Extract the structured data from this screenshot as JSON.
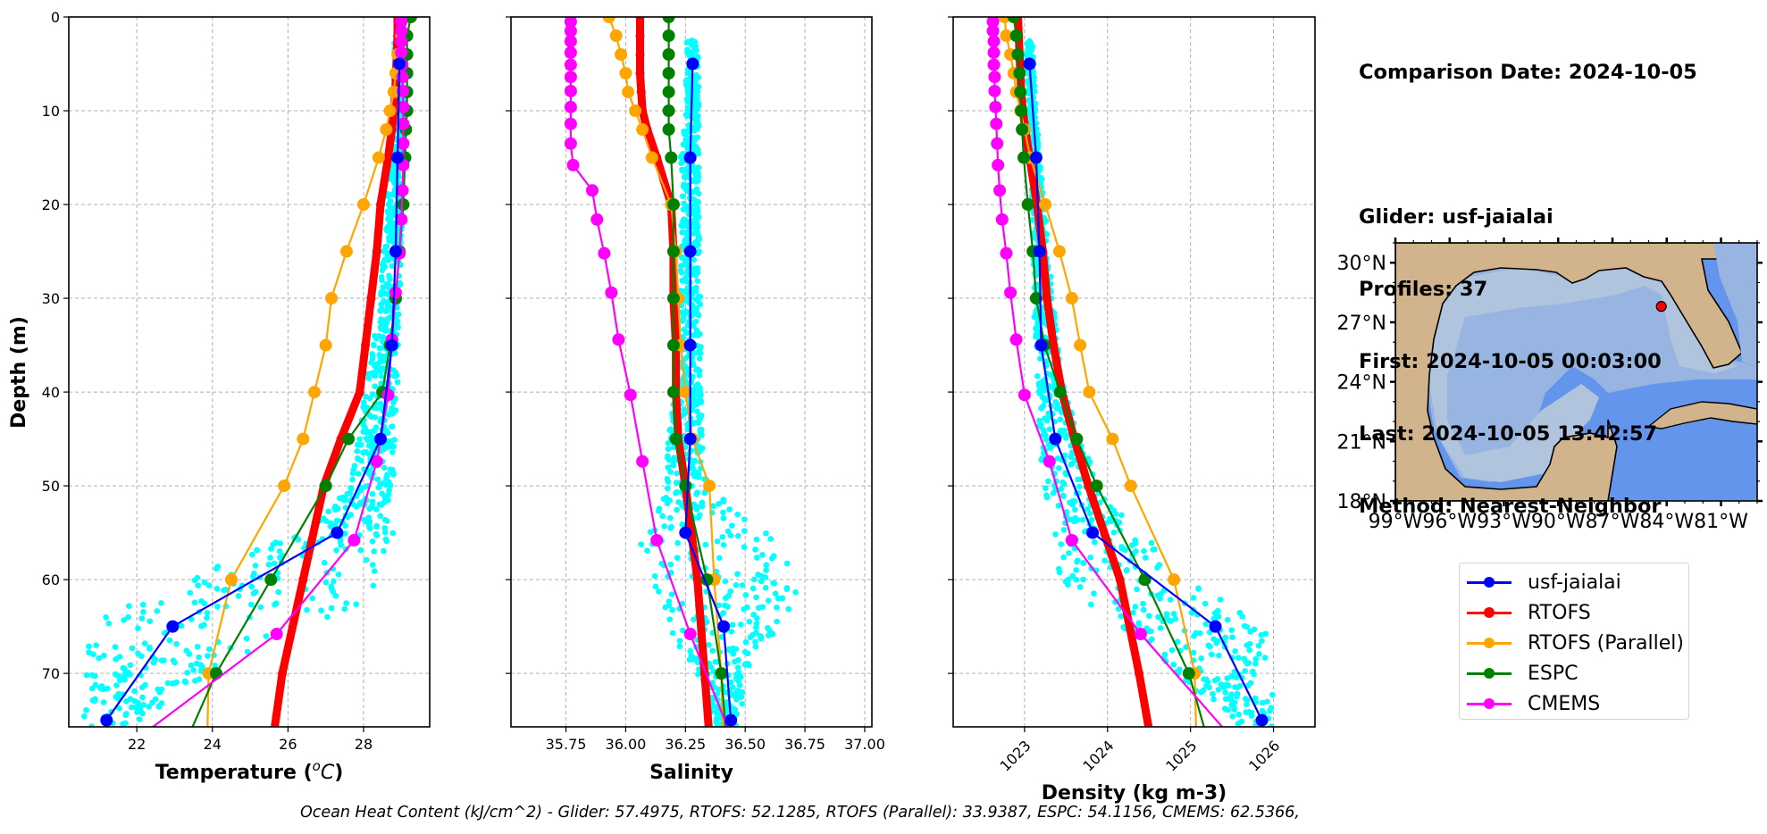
{
  "info": {
    "comparison_date": "Comparison Date: 2024-10-05",
    "glider": "Glider: usf-jaialai",
    "profiles": "Profiles: 37",
    "first": "First: 2024-10-05 00:03:00",
    "last": "Last: 2024-10-05 13:42:57",
    "method": "Method: Nearest-Neighbor"
  },
  "footer": "Ocean Heat Content (kJ/cm^2) - Glider: 57.4975,  RTOFS: 52.1285,  RTOFS (Parallel): 33.9387,  ESPC: 54.1156,  CMEMS: 62.5366,",
  "ohc": {
    "Glider": 57.4975,
    "RTOFS": 52.1285,
    "RTOFS (Parallel)": 33.9387,
    "ESPC": 54.1156,
    "CMEMS": 62.5366
  },
  "legend": [
    {
      "label": "usf-jaialai",
      "color": "#0000ff"
    },
    {
      "label": "RTOFS",
      "color": "#ff0000"
    },
    {
      "label": "RTOFS (Parallel)",
      "color": "#ffa500"
    },
    {
      "label": "ESPC",
      "color": "#008000"
    },
    {
      "label": "CMEMS",
      "color": "#ff00ff"
    }
  ],
  "colors": {
    "scatter": "#00ffff",
    "land": "#d2b48c",
    "shelf": "#b0c4de",
    "slope": "#97b5e0",
    "deep": "#6495ed",
    "glider_marker": "#ff0000"
  },
  "map": {
    "lat_ticks": [
      "30°N",
      "27°N",
      "24°N",
      "21°N",
      "18°N"
    ],
    "lat_values": [
      30,
      27,
      24,
      21,
      18
    ],
    "lon_ticks": [
      "99°W",
      "96°W",
      "93°W",
      "90°W",
      "87°W",
      "84°W",
      "81°W"
    ],
    "lon_values": [
      -99,
      -96,
      -93,
      -90,
      -87,
      -84,
      -81
    ],
    "extent": {
      "lon_min": -99,
      "lon_max": -79,
      "lat_min": 18,
      "lat_max": 31
    },
    "glider_position": {
      "lon": -84.3,
      "lat": 27.8
    }
  },
  "chart_data": [
    {
      "type": "line",
      "panel": "temperature",
      "xlabel": "Temperature (°C)",
      "ylabel": "Depth (m)",
      "xlim": [
        20.2,
        29.75
      ],
      "ylim": [
        75.7,
        0
      ],
      "xticks": [
        22,
        24,
        26,
        28
      ],
      "xtick_labels": [
        "22",
        "24",
        "26",
        "28"
      ],
      "yticks": [
        0,
        10,
        20,
        30,
        40,
        50,
        60,
        70
      ],
      "ytick_labels": [
        "0",
        "10",
        "20",
        "30",
        "40",
        "50",
        "60",
        "70"
      ],
      "grid": true,
      "scatter_band": [
        [
          2.5,
          28.8,
          29.1
        ],
        [
          10,
          28.75,
          29.1
        ],
        [
          20,
          28.6,
          29.05
        ],
        [
          30,
          28.4,
          29.0
        ],
        [
          40,
          28.0,
          28.95
        ],
        [
          45,
          27.8,
          28.9
        ],
        [
          50,
          27.6,
          28.85
        ],
        [
          55,
          26.4,
          28.8
        ],
        [
          57,
          25.0,
          28.7
        ],
        [
          60,
          23.3,
          28.4
        ],
        [
          63,
          21.2,
          27.8
        ],
        [
          67,
          20.7,
          25.2
        ],
        [
          72,
          20.6,
          23.3
        ],
        [
          75.7,
          20.6,
          21.8
        ]
      ],
      "series": [
        {
          "name": "usf-jaialai",
          "color": "#0000ff",
          "width": 2.2,
          "marker": 7,
          "depth": [
            5,
            15,
            25,
            35,
            45,
            55,
            65,
            75
          ],
          "values": [
            28.95,
            28.9,
            28.85,
            28.75,
            28.45,
            27.3,
            22.95,
            21.2
          ]
        },
        {
          "name": "RTOFS",
          "color": "#ff0000",
          "width": 9,
          "marker": 5,
          "depth": [
            0,
            2,
            4,
            6,
            8,
            10,
            12,
            15,
            20,
            25,
            30,
            35,
            40,
            45,
            50,
            60,
            70,
            80
          ],
          "values": [
            28.9,
            28.9,
            28.88,
            28.86,
            28.84,
            28.8,
            28.75,
            28.65,
            28.45,
            28.35,
            28.2,
            28.05,
            27.9,
            27.4,
            26.95,
            26.4,
            25.85,
            25.5
          ]
        },
        {
          "name": "RTOFS (Parallel)",
          "color": "#ffa500",
          "width": 2.2,
          "marker": 7,
          "depth": [
            0,
            2,
            4,
            6,
            8,
            10,
            12,
            15,
            20,
            25,
            30,
            35,
            40,
            45,
            50,
            60,
            70,
            80
          ],
          "values": [
            29.05,
            29.0,
            28.9,
            28.85,
            28.8,
            28.7,
            28.6,
            28.4,
            28.0,
            27.55,
            27.15,
            27.0,
            26.7,
            26.4,
            25.9,
            24.5,
            23.9,
            23.85
          ]
        },
        {
          "name": "ESPC",
          "color": "#008000",
          "width": 2.2,
          "marker": 7,
          "depth": [
            0,
            2,
            4,
            6,
            8,
            10,
            12,
            15,
            20,
            25,
            30,
            35,
            40,
            45,
            50,
            60,
            70,
            80
          ],
          "values": [
            29.25,
            29.15,
            29.15,
            29.15,
            29.15,
            29.15,
            29.12,
            29.1,
            29.05,
            28.95,
            28.85,
            28.7,
            28.5,
            27.6,
            27.0,
            25.55,
            24.1,
            23.0
          ]
        },
        {
          "name": "CMEMS",
          "color": "#ff00ff",
          "width": 2.2,
          "marker": 7,
          "depth": [
            0.5,
            1.5,
            2.6,
            3.8,
            5.1,
            6.4,
            7.9,
            9.6,
            11.4,
            13.5,
            15.8,
            18.5,
            21.6,
            25.2,
            29.4,
            34.4,
            40.3,
            47.4,
            55.8,
            65.8,
            77.9
          ],
          "values": [
            29.0,
            29.0,
            29.0,
            29.0,
            29.02,
            29.03,
            29.04,
            29.05,
            29.05,
            29.05,
            29.05,
            29.03,
            29.0,
            28.95,
            28.85,
            28.75,
            28.65,
            28.35,
            27.75,
            25.7,
            21.7
          ]
        }
      ]
    },
    {
      "type": "line",
      "panel": "salinity",
      "xlabel": "Salinity",
      "ylabel": "",
      "xlim": [
        35.52,
        37.03
      ],
      "ylim": [
        75.7,
        0
      ],
      "xticks": [
        35.75,
        36.0,
        36.25,
        36.5,
        36.75,
        37.0
      ],
      "xtick_labels": [
        "35.75",
        "36.00",
        "36.25",
        "36.50",
        "36.75",
        "37.00"
      ],
      "yticks": [
        0,
        10,
        20,
        30,
        40,
        50,
        60,
        70
      ],
      "grid": true,
      "scatter_band": [
        [
          2.5,
          36.25,
          36.31
        ],
        [
          10,
          36.25,
          36.31
        ],
        [
          15,
          36.22,
          36.31
        ],
        [
          20,
          36.23,
          36.31
        ],
        [
          30,
          36.22,
          36.32
        ],
        [
          40,
          36.2,
          36.32
        ],
        [
          45,
          36.17,
          36.33
        ],
        [
          50,
          36.16,
          36.35
        ],
        [
          55,
          36.05,
          36.6
        ],
        [
          60,
          36.1,
          36.72
        ],
        [
          64,
          36.15,
          36.7
        ],
        [
          67,
          36.2,
          36.56
        ],
        [
          70,
          36.3,
          36.5
        ],
        [
          75.7,
          36.38,
          36.48
        ]
      ],
      "series": [
        {
          "name": "usf-jaialai",
          "color": "#0000ff",
          "width": 2.2,
          "marker": 7,
          "depth": [
            5,
            15,
            25,
            35,
            45,
            55,
            65,
            75
          ],
          "values": [
            36.28,
            36.27,
            36.27,
            36.27,
            36.27,
            36.25,
            36.41,
            36.44
          ]
        },
        {
          "name": "RTOFS",
          "color": "#ff0000",
          "width": 9,
          "marker": 5,
          "depth": [
            0,
            2,
            4,
            6,
            8,
            10,
            12,
            15,
            20,
            25,
            30,
            35,
            40,
            45,
            50,
            60,
            70,
            80
          ],
          "values": [
            36.06,
            36.06,
            36.06,
            36.06,
            36.065,
            36.07,
            36.09,
            36.13,
            36.19,
            36.2,
            36.2,
            36.21,
            36.21,
            36.22,
            36.25,
            36.3,
            36.33,
            36.36
          ]
        },
        {
          "name": "RTOFS (Parallel)",
          "color": "#ffa500",
          "width": 2.2,
          "marker": 7,
          "depth": [
            0,
            2,
            4,
            6,
            8,
            10,
            12,
            15,
            20,
            25,
            30,
            35,
            40,
            45,
            50,
            60,
            70,
            80
          ],
          "values": [
            35.93,
            35.96,
            35.98,
            36.0,
            36.01,
            36.04,
            36.07,
            36.11,
            36.19,
            36.21,
            36.22,
            36.23,
            36.25,
            36.28,
            36.35,
            36.37,
            36.4,
            36.41
          ]
        },
        {
          "name": "ESPC",
          "color": "#008000",
          "width": 2.2,
          "marker": 7,
          "depth": [
            0,
            2,
            4,
            6,
            8,
            10,
            12,
            15,
            20,
            25,
            30,
            35,
            40,
            45,
            50,
            60,
            70,
            80
          ],
          "values": [
            36.18,
            36.18,
            36.18,
            36.18,
            36.18,
            36.18,
            36.18,
            36.19,
            36.2,
            36.2,
            36.2,
            36.2,
            36.2,
            36.21,
            36.25,
            36.34,
            36.4,
            36.43
          ]
        },
        {
          "name": "CMEMS",
          "color": "#ff00ff",
          "width": 2.2,
          "marker": 7,
          "depth": [
            0.5,
            1.5,
            2.6,
            3.8,
            5.1,
            6.4,
            7.9,
            9.6,
            11.4,
            13.5,
            15.8,
            18.5,
            21.6,
            25.2,
            29.4,
            34.4,
            40.3,
            47.4,
            55.8,
            65.8,
            77.9
          ],
          "values": [
            35.77,
            35.77,
            35.77,
            35.77,
            35.77,
            35.77,
            35.77,
            35.77,
            35.77,
            35.77,
            35.78,
            35.86,
            35.88,
            35.91,
            35.94,
            35.97,
            36.02,
            36.07,
            36.13,
            36.27,
            36.46
          ]
        }
      ]
    },
    {
      "type": "line",
      "panel": "density",
      "xlabel": "Density (kg m-3)",
      "ylabel": "",
      "xlim": [
        1022.14,
        1026.5
      ],
      "ylim": [
        75.7,
        0
      ],
      "xticks": [
        1023,
        1024,
        1025,
        1026
      ],
      "xtick_labels": [
        "1023",
        "1024",
        "1025",
        "1026"
      ],
      "yticks": [
        0,
        10,
        20,
        30,
        40,
        50,
        60,
        70
      ],
      "grid": true,
      "scatter_band": [
        [
          2.5,
          1023.02,
          1023.1
        ],
        [
          10,
          1023.04,
          1023.14
        ],
        [
          20,
          1023.08,
          1023.25
        ],
        [
          30,
          1023.1,
          1023.35
        ],
        [
          40,
          1023.12,
          1023.5
        ],
        [
          45,
          1023.15,
          1023.7
        ],
        [
          50,
          1023.2,
          1023.95
        ],
        [
          55,
          1023.3,
          1024.4
        ],
        [
          60,
          1023.4,
          1025.0
        ],
        [
          63,
          1023.8,
          1025.6
        ],
        [
          66,
          1024.3,
          1025.95
        ],
        [
          70,
          1024.8,
          1026.0
        ],
        [
          75.7,
          1025.6,
          1026.0
        ]
      ],
      "series": [
        {
          "name": "usf-jaialai",
          "color": "#0000ff",
          "width": 2.2,
          "marker": 7,
          "depth": [
            5,
            15,
            25,
            35,
            45,
            55,
            65,
            75
          ],
          "values": [
            1023.06,
            1023.14,
            1023.18,
            1023.2,
            1023.37,
            1023.82,
            1025.3,
            1025.86
          ]
        },
        {
          "name": "RTOFS",
          "color": "#ff0000",
          "width": 9,
          "marker": 5,
          "depth": [
            0,
            2,
            4,
            6,
            8,
            10,
            12,
            15,
            20,
            25,
            30,
            35,
            40,
            45,
            50,
            60,
            70,
            80
          ],
          "values": [
            1022.92,
            1022.93,
            1022.94,
            1022.95,
            1022.96,
            1022.98,
            1023.01,
            1023.06,
            1023.15,
            1023.22,
            1023.27,
            1023.35,
            1023.45,
            1023.6,
            1023.77,
            1024.15,
            1024.38,
            1024.58
          ]
        },
        {
          "name": "RTOFS (Parallel)",
          "color": "#ffa500",
          "width": 2.2,
          "marker": 7,
          "depth": [
            0,
            2,
            4,
            6,
            8,
            10,
            12,
            15,
            20,
            25,
            30,
            35,
            40,
            45,
            50,
            60,
            70,
            80
          ],
          "values": [
            1022.76,
            1022.78,
            1022.83,
            1022.87,
            1022.9,
            1022.95,
            1023.0,
            1023.07,
            1023.25,
            1023.42,
            1023.57,
            1023.67,
            1023.78,
            1024.06,
            1024.28,
            1024.8,
            1025.05,
            1025.08
          ]
        },
        {
          "name": "ESPC",
          "color": "#008000",
          "width": 2.2,
          "marker": 7,
          "depth": [
            0,
            2,
            4,
            6,
            8,
            10,
            12,
            15,
            20,
            25,
            30,
            35,
            40,
            45,
            50,
            60,
            70,
            80
          ],
          "values": [
            1022.87,
            1022.9,
            1022.92,
            1022.94,
            1022.95,
            1022.96,
            1022.97,
            1022.99,
            1023.04,
            1023.1,
            1023.14,
            1023.24,
            1023.43,
            1023.63,
            1023.87,
            1024.45,
            1024.98,
            1025.3
          ]
        },
        {
          "name": "CMEMS",
          "color": "#ff00ff",
          "width": 2.2,
          "marker": 7,
          "depth": [
            0.5,
            1.5,
            2.6,
            3.8,
            5.1,
            6.4,
            7.9,
            9.6,
            11.4,
            13.5,
            15.8,
            18.5,
            21.6,
            25.2,
            29.4,
            34.4,
            40.3,
            47.4,
            55.8,
            65.8,
            77.9
          ],
          "values": [
            1022.62,
            1022.62,
            1022.63,
            1022.63,
            1022.63,
            1022.64,
            1022.64,
            1022.65,
            1022.66,
            1022.67,
            1022.68,
            1022.7,
            1022.73,
            1022.78,
            1022.83,
            1022.9,
            1023.0,
            1023.3,
            1023.57,
            1024.4,
            1025.6
          ]
        }
      ]
    }
  ]
}
